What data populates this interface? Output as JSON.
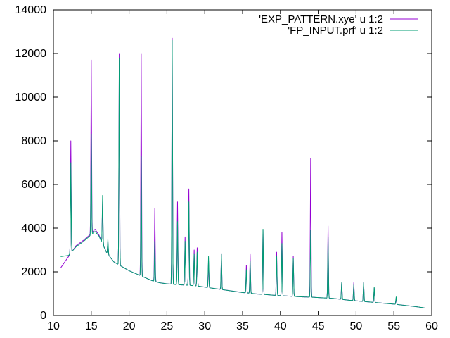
{
  "chart_data": {
    "type": "line",
    "title": "",
    "xlabel": "",
    "ylabel": "",
    "xlim": [
      10,
      60
    ],
    "ylim": [
      0,
      14000
    ],
    "x_ticks": [
      10,
      15,
      20,
      25,
      30,
      35,
      40,
      45,
      50,
      55,
      60
    ],
    "y_ticks": [
      0,
      2000,
      4000,
      6000,
      8000,
      10000,
      12000,
      14000
    ],
    "x_tick_labels": [
      "10",
      "15",
      "20",
      "25",
      "30",
      "35",
      "40",
      "45",
      "50",
      "55",
      "60"
    ],
    "y_tick_labels": [
      "0",
      "2000",
      "4000",
      "6000",
      "8000",
      "10000",
      "12000",
      "14000"
    ],
    "grid": false,
    "legend_position": "top-right",
    "series": [
      {
        "name": "'EXP_PATTERN.xye' u 1:2",
        "color": "#9400d3",
        "baseline": [
          [
            11.0,
            2200
          ],
          [
            12.0,
            2700
          ],
          [
            13.0,
            3200
          ],
          [
            14.0,
            3450
          ],
          [
            15.0,
            3750
          ],
          [
            15.5,
            3950
          ],
          [
            16.0,
            3700
          ],
          [
            17.0,
            2900
          ],
          [
            18.0,
            2450
          ],
          [
            19.0,
            2250
          ],
          [
            20.0,
            2050
          ],
          [
            21.0,
            1900
          ],
          [
            22.0,
            1750
          ],
          [
            23.0,
            1600
          ],
          [
            24.0,
            1500
          ],
          [
            25.0,
            1450
          ],
          [
            26.0,
            1420
          ],
          [
            27.0,
            1400
          ],
          [
            28.0,
            1380
          ],
          [
            29.0,
            1350
          ],
          [
            30.0,
            1300
          ],
          [
            31.0,
            1250
          ],
          [
            32.0,
            1200
          ],
          [
            33.0,
            1150
          ],
          [
            34.0,
            1100
          ],
          [
            35.0,
            1050
          ],
          [
            36.0,
            1020
          ],
          [
            37.0,
            980
          ],
          [
            38.0,
            960
          ],
          [
            39.0,
            930
          ],
          [
            40.0,
            910
          ],
          [
            41.0,
            890
          ],
          [
            42.0,
            870
          ],
          [
            43.0,
            850
          ],
          [
            44.0,
            840
          ],
          [
            45.0,
            820
          ],
          [
            46.0,
            800
          ],
          [
            47.0,
            780
          ],
          [
            48.0,
            740
          ],
          [
            49.0,
            700
          ],
          [
            50.0,
            670
          ],
          [
            51.0,
            640
          ],
          [
            52.0,
            610
          ],
          [
            53.0,
            580
          ],
          [
            54.0,
            550
          ],
          [
            55.0,
            520
          ],
          [
            56.0,
            480
          ],
          [
            57.0,
            440
          ],
          [
            58.0,
            400
          ],
          [
            59.0,
            350
          ]
        ],
        "peaks": [
          [
            12.3,
            8000
          ],
          [
            15.0,
            11700
          ],
          [
            16.5,
            5200
          ],
          [
            17.2,
            3400
          ],
          [
            18.7,
            12000
          ],
          [
            21.6,
            12000
          ],
          [
            23.4,
            4900
          ],
          [
            25.7,
            12700
          ],
          [
            26.4,
            5200
          ],
          [
            27.4,
            3600
          ],
          [
            27.9,
            5800
          ],
          [
            28.6,
            3000
          ],
          [
            29.0,
            3100
          ],
          [
            30.5,
            2500
          ],
          [
            32.2,
            2800
          ],
          [
            35.5,
            2300
          ],
          [
            36.0,
            2800
          ],
          [
            37.7,
            3900
          ],
          [
            39.5,
            2900
          ],
          [
            40.2,
            3800
          ],
          [
            41.7,
            2700
          ],
          [
            44.0,
            7200
          ],
          [
            46.3,
            4100
          ],
          [
            48.1,
            1500
          ],
          [
            49.7,
            1500
          ],
          [
            51.0,
            1500
          ],
          [
            52.4,
            1250
          ],
          [
            55.3,
            800
          ]
        ]
      },
      {
        "name": "'FP_INPUT.prf' u 1:2",
        "color": "#009e73",
        "baseline": [
          [
            11.0,
            2700
          ],
          [
            12.0,
            2750
          ],
          [
            13.0,
            3150
          ],
          [
            14.0,
            3400
          ],
          [
            15.0,
            3700
          ],
          [
            15.5,
            3850
          ],
          [
            16.0,
            3650
          ],
          [
            17.0,
            2900
          ],
          [
            18.0,
            2450
          ],
          [
            19.0,
            2250
          ],
          [
            20.0,
            2050
          ],
          [
            21.0,
            1900
          ],
          [
            22.0,
            1750
          ],
          [
            23.0,
            1600
          ],
          [
            24.0,
            1500
          ],
          [
            25.0,
            1450
          ],
          [
            26.0,
            1420
          ],
          [
            27.0,
            1400
          ],
          [
            28.0,
            1380
          ],
          [
            29.0,
            1350
          ],
          [
            30.0,
            1300
          ],
          [
            31.0,
            1250
          ],
          [
            32.0,
            1200
          ],
          [
            33.0,
            1150
          ],
          [
            34.0,
            1100
          ],
          [
            35.0,
            1050
          ],
          [
            36.0,
            1020
          ],
          [
            37.0,
            980
          ],
          [
            38.0,
            960
          ],
          [
            39.0,
            930
          ],
          [
            40.0,
            910
          ],
          [
            41.0,
            890
          ],
          [
            42.0,
            870
          ],
          [
            43.0,
            850
          ],
          [
            44.0,
            840
          ],
          [
            45.0,
            820
          ],
          [
            46.0,
            800
          ],
          [
            47.0,
            780
          ],
          [
            48.0,
            740
          ],
          [
            49.0,
            700
          ],
          [
            50.0,
            670
          ],
          [
            51.0,
            640
          ],
          [
            52.0,
            610
          ],
          [
            53.0,
            580
          ],
          [
            54.0,
            550
          ],
          [
            55.0,
            520
          ],
          [
            56.0,
            480
          ],
          [
            57.0,
            440
          ],
          [
            58.0,
            400
          ],
          [
            59.0,
            350
          ]
        ],
        "peaks": [
          [
            12.3,
            7000
          ],
          [
            15.0,
            8300
          ],
          [
            16.5,
            5500
          ],
          [
            17.2,
            3500
          ],
          [
            18.7,
            11800
          ],
          [
            21.6,
            7300
          ],
          [
            23.4,
            3400
          ],
          [
            25.7,
            12600
          ],
          [
            26.4,
            4300
          ],
          [
            27.4,
            3400
          ],
          [
            27.9,
            5200
          ],
          [
            28.6,
            2800
          ],
          [
            29.0,
            2900
          ],
          [
            30.5,
            2700
          ],
          [
            32.2,
            2800
          ],
          [
            35.5,
            2100
          ],
          [
            36.0,
            2500
          ],
          [
            37.7,
            3950
          ],
          [
            39.5,
            2700
          ],
          [
            40.2,
            3300
          ],
          [
            41.7,
            2600
          ],
          [
            44.0,
            3900
          ],
          [
            46.3,
            3600
          ],
          [
            48.1,
            1500
          ],
          [
            49.7,
            1400
          ],
          [
            51.0,
            1500
          ],
          [
            52.4,
            1300
          ],
          [
            55.3,
            850
          ]
        ]
      }
    ]
  }
}
